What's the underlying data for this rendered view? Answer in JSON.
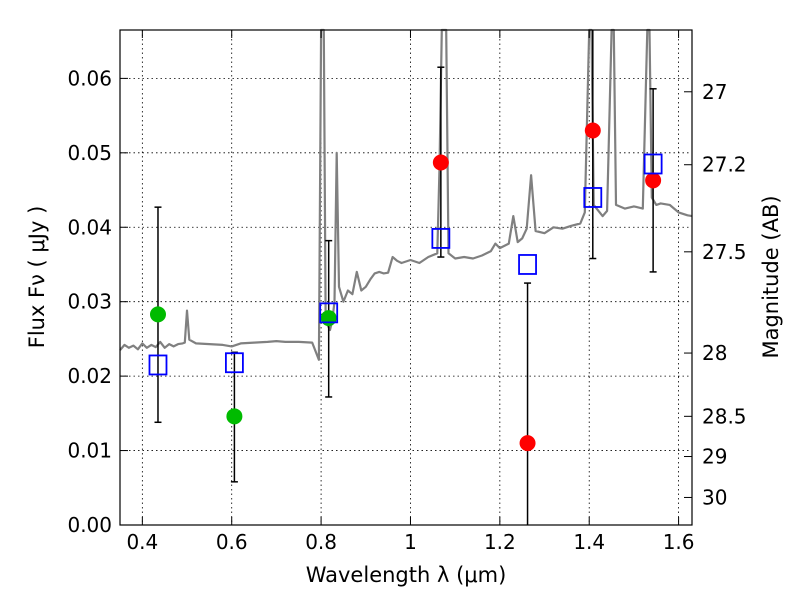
{
  "chart_data": {
    "type": "scatter",
    "xlabel": "Wavelength  λ (μm)",
    "ylabel": "Flux  Fν  ( μJy )",
    "y2label": "Magnitude (AB)",
    "xlim": [
      0.35,
      1.63
    ],
    "ylim": [
      0.0,
      0.0665
    ],
    "grid": true,
    "grid_style": "dotted",
    "x_ticks": [
      0.4,
      0.6,
      0.8,
      1.0,
      1.2,
      1.4,
      1.6
    ],
    "x_tick_labels": [
      "0.4",
      "0.6",
      "0.8",
      "1",
      "1.2",
      "1.4",
      "1.6"
    ],
    "y_ticks": [
      0.0,
      0.01,
      0.02,
      0.03,
      0.04,
      0.05,
      0.06
    ],
    "y_tick_labels": [
      "0.00",
      "0.01",
      "0.02",
      "0.03",
      "0.04",
      "0.05",
      "0.06"
    ],
    "y2_ticks": [
      {
        "label": "27",
        "flux": 0.0582
      },
      {
        "label": "27.2",
        "flux": 0.0484
      },
      {
        "label": "27.5",
        "flux": 0.0367
      },
      {
        "label": "28",
        "flux": 0.0231
      },
      {
        "label": "28.5",
        "flux": 0.0146
      },
      {
        "label": "29",
        "flux": 0.0092
      },
      {
        "label": "30",
        "flux": 0.0037
      }
    ],
    "spectrum": {
      "color": "#808080",
      "points": [
        [
          0.35,
          0.0235
        ],
        [
          0.36,
          0.0242
        ],
        [
          0.37,
          0.0238
        ],
        [
          0.38,
          0.0241
        ],
        [
          0.39,
          0.0236
        ],
        [
          0.4,
          0.0244
        ],
        [
          0.41,
          0.0238
        ],
        [
          0.42,
          0.0242
        ],
        [
          0.43,
          0.0239
        ],
        [
          0.44,
          0.0246
        ],
        [
          0.45,
          0.0238
        ],
        [
          0.46,
          0.0243
        ],
        [
          0.47,
          0.024
        ],
        [
          0.48,
          0.0243
        ],
        [
          0.49,
          0.0244
        ],
        [
          0.495,
          0.0245
        ],
        [
          0.5,
          0.0288
        ],
        [
          0.505,
          0.0249
        ],
        [
          0.52,
          0.0244
        ],
        [
          0.55,
          0.0243
        ],
        [
          0.58,
          0.0242
        ],
        [
          0.6,
          0.024
        ],
        [
          0.62,
          0.0244
        ],
        [
          0.65,
          0.0245
        ],
        [
          0.68,
          0.0246
        ],
        [
          0.7,
          0.0247
        ],
        [
          0.72,
          0.0246
        ],
        [
          0.75,
          0.0246
        ],
        [
          0.78,
          0.0245
        ],
        [
          0.795,
          0.0222
        ],
        [
          0.8,
          0.0665
        ],
        [
          0.806,
          0.0665
        ],
        [
          0.81,
          0.0285
        ],
        [
          0.815,
          0.0268
        ],
        [
          0.82,
          0.0262
        ],
        [
          0.825,
          0.0275
        ],
        [
          0.83,
          0.03
        ],
        [
          0.835,
          0.05
        ],
        [
          0.84,
          0.032
        ],
        [
          0.85,
          0.03
        ],
        [
          0.86,
          0.0315
        ],
        [
          0.87,
          0.031
        ],
        [
          0.88,
          0.034
        ],
        [
          0.89,
          0.0315
        ],
        [
          0.9,
          0.032
        ],
        [
          0.91,
          0.033
        ],
        [
          0.92,
          0.0338
        ],
        [
          0.93,
          0.034
        ],
        [
          0.94,
          0.0338
        ],
        [
          0.95,
          0.0339
        ],
        [
          0.96,
          0.036
        ],
        [
          0.97,
          0.0355
        ],
        [
          0.98,
          0.0352
        ],
        [
          1.0,
          0.0356
        ],
        [
          1.02,
          0.0352
        ],
        [
          1.04,
          0.036
        ],
        [
          1.06,
          0.0365
        ],
        [
          1.065,
          0.048
        ],
        [
          1.07,
          0.0665
        ],
        [
          1.08,
          0.0665
        ],
        [
          1.085,
          0.0365
        ],
        [
          1.1,
          0.0358
        ],
        [
          1.12,
          0.036
        ],
        [
          1.14,
          0.0358
        ],
        [
          1.16,
          0.0362
        ],
        [
          1.18,
          0.0368
        ],
        [
          1.19,
          0.0378
        ],
        [
          1.2,
          0.0372
        ],
        [
          1.22,
          0.0378
        ],
        [
          1.23,
          0.0415
        ],
        [
          1.24,
          0.038
        ],
        [
          1.25,
          0.0385
        ],
        [
          1.26,
          0.0398
        ],
        [
          1.27,
          0.047
        ],
        [
          1.28,
          0.0395
        ],
        [
          1.3,
          0.0392
        ],
        [
          1.32,
          0.04
        ],
        [
          1.34,
          0.0398
        ],
        [
          1.36,
          0.0402
        ],
        [
          1.38,
          0.0405
        ],
        [
          1.39,
          0.042
        ],
        [
          1.4,
          0.0665
        ],
        [
          1.405,
          0.0665
        ],
        [
          1.41,
          0.043
        ],
        [
          1.43,
          0.0415
        ],
        [
          1.44,
          0.0422
        ],
        [
          1.45,
          0.0665
        ],
        [
          1.455,
          0.0665
        ],
        [
          1.46,
          0.043
        ],
        [
          1.48,
          0.0425
        ],
        [
          1.5,
          0.0428
        ],
        [
          1.52,
          0.0425
        ],
        [
          1.53,
          0.0665
        ],
        [
          1.535,
          0.0665
        ],
        [
          1.54,
          0.044
        ],
        [
          1.55,
          0.043
        ],
        [
          1.56,
          0.0432
        ],
        [
          1.58,
          0.043
        ],
        [
          1.6,
          0.042
        ],
        [
          1.62,
          0.0416
        ],
        [
          1.63,
          0.0415
        ]
      ]
    },
    "errorbars": [
      {
        "x": 0.435,
        "low": 0.0138,
        "high": 0.0427
      },
      {
        "x": 0.606,
        "low": 0.0058,
        "high": 0.0232
      },
      {
        "x": 0.817,
        "low": 0.0172,
        "high": 0.0382
      },
      {
        "x": 1.068,
        "low": 0.036,
        "high": 0.0615
      },
      {
        "x": 1.262,
        "low": 0.0,
        "high": 0.0325
      },
      {
        "x": 1.408,
        "low": 0.0358,
        "high": 0.0665
      },
      {
        "x": 1.543,
        "low": 0.034,
        "high": 0.0586
      }
    ],
    "series": [
      {
        "marker": "circle",
        "color": "#00bb00",
        "points": [
          [
            0.435,
            0.0283
          ],
          [
            0.606,
            0.0146
          ],
          [
            0.817,
            0.0278
          ]
        ]
      },
      {
        "marker": "circle",
        "color": "#ff0000",
        "points": [
          [
            1.068,
            0.0487
          ],
          [
            1.262,
            0.011
          ],
          [
            1.408,
            0.053
          ],
          [
            1.543,
            0.0463
          ]
        ]
      },
      {
        "marker": "open-square",
        "color": "#0000ff",
        "points": [
          [
            0.435,
            0.0215
          ],
          [
            0.606,
            0.0218
          ],
          [
            0.817,
            0.0285
          ],
          [
            1.068,
            0.0385
          ],
          [
            1.262,
            0.035
          ],
          [
            1.408,
            0.044
          ],
          [
            1.543,
            0.0485
          ]
        ]
      }
    ]
  }
}
